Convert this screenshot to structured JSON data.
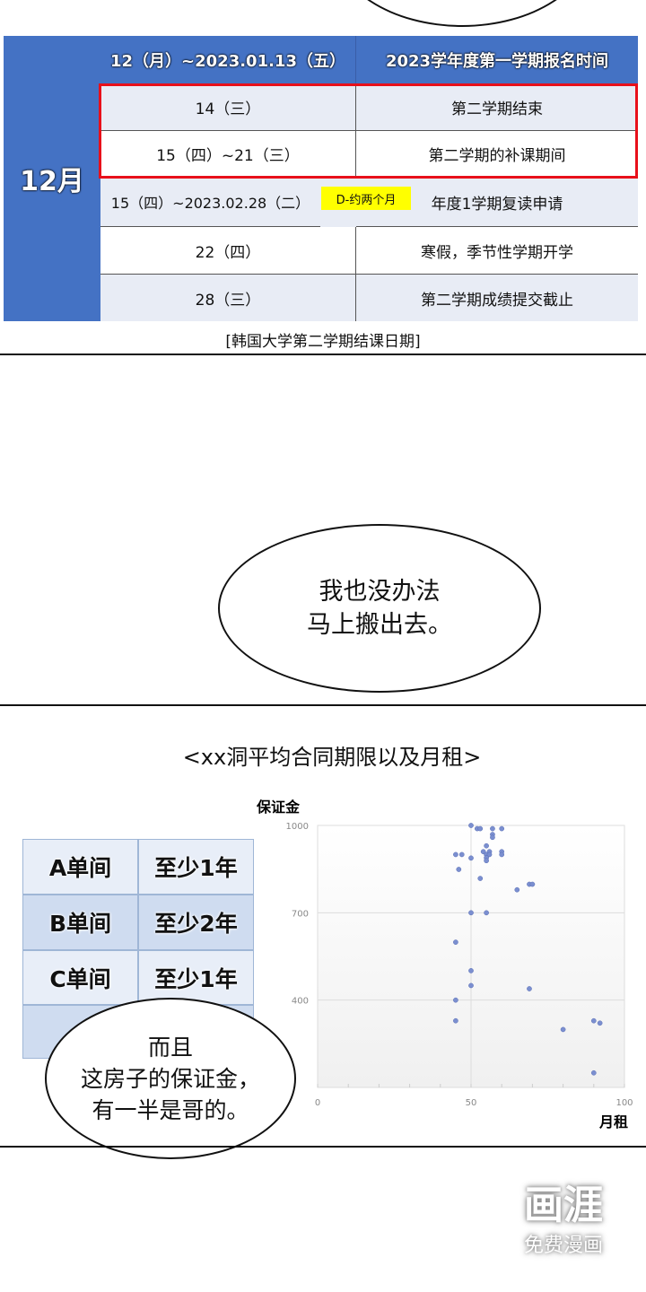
{
  "calendar_table": {
    "month": "12月",
    "header": {
      "date": "12（月）~2023.01.13（五）",
      "event": "2023学年度第一学期报名时间"
    },
    "rows": [
      {
        "date": "14（三）",
        "event": "第二学期结束"
      },
      {
        "date": "15（四）~21（三）",
        "event": "第二学期的补课期间"
      },
      {
        "date": "15（四）~2023.02.28（二）",
        "badge": "D-约两个月",
        "event": "年度1学期复读申请"
      },
      {
        "date": "22（四）",
        "event": "寒假，季节性学期开学"
      },
      {
        "date": "28（三）",
        "event": "第二学期成绩提交截止"
      }
    ],
    "caption": "[韩国大学第二学期结课日期]",
    "colors": {
      "blue": "#4472c4",
      "highlight": "#e8101a",
      "badge": "#ffff00"
    }
  },
  "bubble1": {
    "lines": [
      "我也没办法",
      "马上搬出去。"
    ]
  },
  "chart_title": "<xx洞平均合同期限以及月租>",
  "lease_table": {
    "rows": [
      {
        "room": "A单间",
        "term": "至少1年"
      },
      {
        "room": "B单间",
        "term": "至少2年"
      },
      {
        "room": "C单间",
        "term": "至少1年"
      }
    ]
  },
  "bubble2": {
    "lines": [
      "而且",
      "这房子的保证金，",
      "有一半是哥的。"
    ]
  },
  "chart_data": {
    "type": "scatter",
    "xlabel": "月租",
    "ylabel": "保证金",
    "xlim": [
      0,
      100
    ],
    "ylim": [
      100,
      1000
    ],
    "xticks": [
      0,
      50,
      100
    ],
    "yticks": [
      400,
      700,
      1000
    ],
    "grid": true,
    "color": "#7b8fd0",
    "points": [
      [
        50,
        1000
      ],
      [
        52,
        989
      ],
      [
        53,
        989
      ],
      [
        57,
        989
      ],
      [
        60,
        989
      ],
      [
        57,
        969
      ],
      [
        57,
        959
      ],
      [
        55,
        930
      ],
      [
        45,
        900
      ],
      [
        47,
        900
      ],
      [
        50,
        888
      ],
      [
        54,
        910
      ],
      [
        56,
        910
      ],
      [
        55,
        900
      ],
      [
        56,
        900
      ],
      [
        55,
        889
      ],
      [
        55,
        879
      ],
      [
        60,
        910
      ],
      [
        60,
        900
      ],
      [
        46,
        849
      ],
      [
        53,
        818
      ],
      [
        69,
        798
      ],
      [
        70,
        798
      ],
      [
        65,
        779
      ],
      [
        50,
        700
      ],
      [
        55,
        700
      ],
      [
        45,
        599
      ],
      [
        50,
        501
      ],
      [
        50,
        450
      ],
      [
        69,
        439
      ],
      [
        45,
        400
      ],
      [
        45,
        329
      ],
      [
        80,
        299
      ],
      [
        90,
        329
      ],
      [
        92,
        321
      ],
      [
        90,
        150
      ]
    ]
  },
  "watermark": {
    "logo": "画涯",
    "tagline": "免费漫画"
  }
}
